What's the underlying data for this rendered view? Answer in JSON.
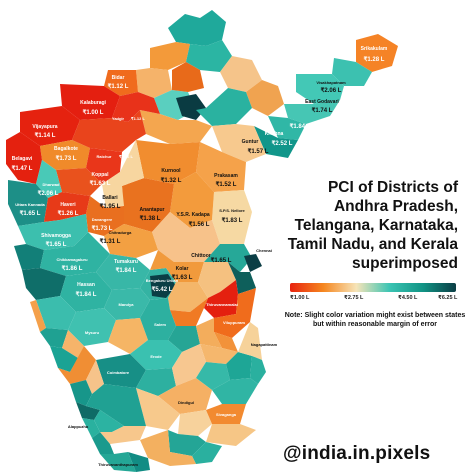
{
  "title": "PCI of Districts of\nAndhra Pradesh,\nTelangana, Karnataka,\nTamil Nadu, and Kerala\nsuperimposed",
  "legend": {
    "ticks": [
      "₹1.00 L",
      "₹2.75 L",
      "₹4.50 L",
      "₹6.25 L"
    ],
    "colors": [
      "#e8230f",
      "#f5861f",
      "#f6e4b8",
      "#3bc4b3",
      "#119485",
      "#0b3e45"
    ]
  },
  "note": "Note: Slight color variation might exist between states but within reasonable margin of error",
  "handle": "@india.in.pixels",
  "labels": [
    {
      "id": "srikakulam",
      "name": "Srikakulam",
      "value": "₹1.28 L",
      "dark": false
    },
    {
      "id": "visakhapatnam",
      "name": "Visakhapatnam",
      "value": "₹2.06 L",
      "dark": true
    },
    {
      "id": "east-godavari",
      "name": "East Godavari",
      "value": "₹1.74 L",
      "dark": true
    },
    {
      "id": "krishna",
      "name": "Krishna",
      "value": "₹2.52 L",
      "dark": false
    },
    {
      "id": "west-godavari",
      "name": "",
      "value": "₹1.84 L",
      "dark": false
    },
    {
      "id": "guntur",
      "name": "Guntur",
      "value": "₹1.57 L",
      "dark": true
    },
    {
      "id": "prakasam",
      "name": "Prakasam",
      "value": "₹1.52 L",
      "dark": true
    },
    {
      "id": "kurnool",
      "name": "Kurnool",
      "value": "₹1.32 L",
      "dark": true
    },
    {
      "id": "anantapur",
      "name": "Anantapur",
      "value": "₹1.38 L",
      "dark": true
    },
    {
      "id": "kadapa",
      "name": "Y.S.R. Kadapa",
      "value": "₹1.56 L",
      "dark": true
    },
    {
      "id": "nellore",
      "name": "S.P.S. Nellore",
      "value": "₹1.83 L",
      "dark": true
    },
    {
      "id": "chittoor",
      "name": "Chittoor",
      "value": "₹1.65 L",
      "dark": true
    },
    {
      "id": "bidar",
      "name": "Bidar",
      "value": "₹1.12 L",
      "dark": false
    },
    {
      "id": "kalaburagi",
      "name": "Kalaburagi",
      "value": "₹1.00 L",
      "dark": false
    },
    {
      "id": "vijayapura",
      "name": "Vijayapura",
      "value": "₹1.14 L",
      "dark": false
    },
    {
      "id": "yadgir",
      "name": "Yadgir",
      "value": "₹1.12 L",
      "dark": false
    },
    {
      "id": "bagalkote",
      "name": "Bagalkote",
      "value": "₹1.73 L",
      "dark": false
    },
    {
      "id": "raichur",
      "name": "Raichur",
      "value": "₹1.16 L",
      "dark": false
    },
    {
      "id": "belagavi",
      "name": "Belagavi",
      "value": "₹1.47 L",
      "dark": false
    },
    {
      "id": "koppal",
      "name": "Koppal",
      "value": "₹1.63 L",
      "dark": false
    },
    {
      "id": "dharwad",
      "name": "Dharwad",
      "value": "₹2.06 L",
      "dark": false
    },
    {
      "id": "uttara-kannada",
      "name": "Uttara Kannada",
      "value": "₹1.65 L",
      "dark": true
    },
    {
      "id": "haveri",
      "name": "Haveri",
      "value": "₹1.26 L",
      "dark": false
    },
    {
      "id": "ballari",
      "name": "Ballari",
      "value": "₹1.95 L",
      "dark": false
    },
    {
      "id": "davangere",
      "name": "Davangere",
      "value": "₹1.73 L",
      "dark": false
    },
    {
      "id": "chitradurga",
      "name": "Chitradurga",
      "value": "₹1.31 L",
      "dark": true
    },
    {
      "id": "shivamogga",
      "name": "Shivamogga",
      "value": "₹1.65 L",
      "dark": false
    },
    {
      "id": "chikkamagaluru",
      "name": "Chikkamagaluru",
      "value": "₹1.86 L",
      "dark": false
    },
    {
      "id": "tumakuru",
      "name": "Tumakuru",
      "value": "₹1.84 L",
      "dark": false
    },
    {
      "id": "hassan",
      "name": "Hassan",
      "value": "₹1.84 L",
      "dark": false
    },
    {
      "id": "bengaluru",
      "name": "Bengaluru Urban",
      "value": "₹5.42 L",
      "dark": false
    },
    {
      "id": "kolar",
      "name": "Kolar",
      "value": "₹1.63 L",
      "dark": true
    },
    {
      "id": "chennai",
      "name": "Chennai",
      "value": "",
      "dark": true
    },
    {
      "id": "thiruvannamalai",
      "name": "Thiruvannamalai",
      "value": "",
      "dark": false
    },
    {
      "id": "viluppuram",
      "name": "Viluppuram",
      "value": "",
      "dark": false
    },
    {
      "id": "mysuru",
      "name": "Mysuru",
      "value": "",
      "dark": false
    },
    {
      "id": "mandya",
      "name": "Mandya",
      "value": "",
      "dark": false
    },
    {
      "id": "erode",
      "name": "Erode",
      "value": "",
      "dark": false
    },
    {
      "id": "salem",
      "name": "Salem",
      "value": "",
      "dark": false
    },
    {
      "id": "coimbatore",
      "name": "Coimbatore",
      "value": "",
      "dark": false
    },
    {
      "id": "nagapattinam",
      "name": "Nagapattinam",
      "value": "",
      "dark": false
    },
    {
      "id": "dindigul",
      "name": "Dindigul",
      "value": "",
      "dark": false
    },
    {
      "id": "sivaganga",
      "name": "Sivaganga",
      "value": "",
      "dark": false
    },
    {
      "id": "alappuzha",
      "name": "Alappuzha",
      "value": "",
      "dark": true
    },
    {
      "id": "thiruvananthapuram",
      "name": "Thiruvananthapuram",
      "value": "",
      "dark": true
    }
  ]
}
